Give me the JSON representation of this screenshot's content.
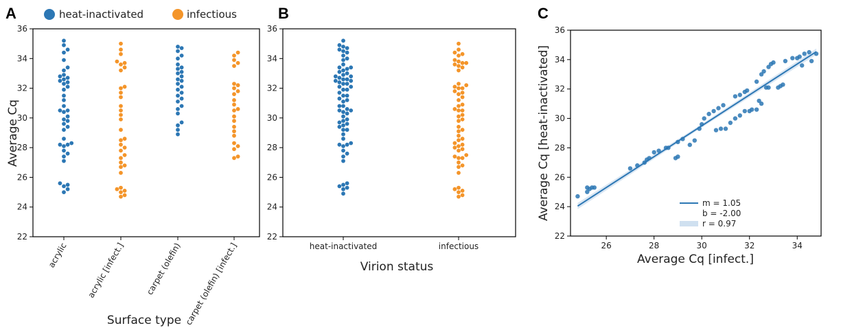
{
  "colors": {
    "blue": "#2c77b4",
    "orange": "#f4952a",
    "fit": "#2c77b4",
    "band": "#cfe0f0"
  },
  "chart_data": [
    {
      "panel": "A",
      "type": "scatter",
      "xlabel": "Surface type",
      "ylabel": "Average Cq",
      "ylim": [
        22,
        36
      ],
      "yticks": [
        22,
        24,
        26,
        28,
        30,
        32,
        34,
        36
      ],
      "legend": [
        {
          "label": "heat-inactivated",
          "color": "#2c77b4"
        },
        {
          "label": "infectious",
          "color": "#f4952a"
        }
      ],
      "legend_placement": "top",
      "categories": [
        "acrylic",
        "acrylic [infect.]",
        "carpet (olefin)",
        "carpet (olefin) [infect.]"
      ],
      "series": [
        {
          "color": "#2c77b4",
          "values": [
            25.0,
            25.2,
            25.4,
            25.5,
            25.6,
            27.1,
            27.4,
            27.6,
            27.8,
            28.1,
            28.2,
            28.2,
            28.3,
            28.6,
            29.2,
            29.4,
            29.6,
            29.8,
            29.9,
            30.1,
            30.4,
            30.5,
            30.5,
            30.8,
            31.2,
            31.5,
            31.9,
            32.1,
            32.3,
            32.4,
            32.5,
            32.6,
            32.7,
            32.8,
            32.9,
            33.2,
            33.4,
            33.9,
            34.4,
            34.6,
            34.9,
            35.2
          ]
        },
        {
          "color": "#f4952a",
          "values": [
            24.7,
            24.8,
            25.0,
            25.1,
            25.2,
            25.3,
            26.3,
            26.7,
            26.8,
            27.0,
            27.3,
            27.5,
            27.8,
            28.0,
            28.2,
            28.5,
            28.6,
            29.2,
            29.9,
            30.2,
            30.5,
            30.8,
            31.4,
            31.7,
            32.0,
            32.1,
            33.2,
            33.4,
            33.6,
            33.7,
            33.8,
            34.3,
            34.6,
            35.0
          ]
        },
        {
          "color": "#2c77b4",
          "values": [
            28.9,
            29.2,
            29.5,
            29.7,
            30.3,
            30.6,
            30.8,
            31.1,
            31.3,
            31.5,
            31.7,
            31.9,
            32.1,
            32.3,
            32.5,
            32.6,
            32.8,
            33.0,
            33.1,
            33.3,
            33.4,
            33.6,
            34.0,
            34.2,
            34.5,
            34.7,
            34.8
          ]
        },
        {
          "color": "#f4952a",
          "values": [
            27.3,
            27.4,
            27.9,
            28.1,
            28.3,
            28.8,
            29.1,
            29.4,
            29.8,
            30.1,
            30.5,
            30.6,
            30.9,
            31.2,
            31.6,
            31.8,
            32.0,
            32.2,
            32.3,
            33.5,
            33.7,
            33.9,
            34.2,
            34.4
          ]
        }
      ]
    },
    {
      "panel": "B",
      "type": "scatter",
      "xlabel": "Virion status",
      "ylabel": "",
      "ylim": [
        22,
        36
      ],
      "yticks": [
        22,
        24,
        26,
        28,
        30,
        32,
        34,
        36
      ],
      "categories": [
        "heat-inactivated",
        "infectious"
      ],
      "series": [
        {
          "color": "#2c77b4",
          "values": [
            24.9,
            25.2,
            25.3,
            25.4,
            25.5,
            25.6,
            27.1,
            27.4,
            27.6,
            27.8,
            28.1,
            28.2,
            28.2,
            28.3,
            28.6,
            28.9,
            29.2,
            29.2,
            29.4,
            29.5,
            29.6,
            29.7,
            29.8,
            29.9,
            30.1,
            30.3,
            30.4,
            30.5,
            30.5,
            30.6,
            30.8,
            30.8,
            31.1,
            31.2,
            31.3,
            31.5,
            31.5,
            31.7,
            31.9,
            31.9,
            32.1,
            32.1,
            32.3,
            32.3,
            32.4,
            32.5,
            32.5,
            32.6,
            32.6,
            32.7,
            32.8,
            32.8,
            32.9,
            33.0,
            33.1,
            33.2,
            33.3,
            33.4,
            33.4,
            33.6,
            33.9,
            34.0,
            34.2,
            34.4,
            34.5,
            34.6,
            34.7,
            34.8,
            34.9,
            35.2
          ]
        },
        {
          "color": "#f4952a",
          "values": [
            24.7,
            24.8,
            25.0,
            25.1,
            25.2,
            25.3,
            26.3,
            26.7,
            26.8,
            27.0,
            27.3,
            27.3,
            27.4,
            27.5,
            27.8,
            27.9,
            28.0,
            28.1,
            28.2,
            28.3,
            28.5,
            28.6,
            28.8,
            29.1,
            29.2,
            29.4,
            29.8,
            29.9,
            30.1,
            30.2,
            30.5,
            30.5,
            30.6,
            30.8,
            30.9,
            31.2,
            31.4,
            31.6,
            31.7,
            31.8,
            32.0,
            32.0,
            32.1,
            32.2,
            32.3,
            33.2,
            33.4,
            33.5,
            33.6,
            33.7,
            33.7,
            33.8,
            33.9,
            34.2,
            34.3,
            34.4,
            34.6,
            35.0
          ]
        }
      ]
    },
    {
      "panel": "C",
      "type": "scatter",
      "xlabel": "Average Cq [infect.]",
      "ylabel": "Average Cq [heat-inactivated]",
      "xlim": [
        24.5,
        35.0
      ],
      "ylim": [
        22,
        36
      ],
      "xticks": [
        26,
        28,
        30,
        32,
        34
      ],
      "yticks": [
        22,
        24,
        26,
        28,
        30,
        32,
        34,
        36
      ],
      "fit": {
        "m": 1.05,
        "b": -2.0,
        "x_range": [
          24.8,
          34.8
        ]
      },
      "legend": [
        "m = 1.05",
        "b = -2.00",
        "r = 0.97"
      ],
      "legend_placement": "lower-right",
      "points": [
        [
          24.8,
          24.7
        ],
        [
          25.2,
          25.3
        ],
        [
          25.3,
          25.2
        ],
        [
          25.4,
          25.3
        ],
        [
          25.5,
          25.3
        ],
        [
          25.2,
          25.0
        ],
        [
          27.0,
          26.6
        ],
        [
          27.3,
          26.8
        ],
        [
          27.6,
          27.0
        ],
        [
          27.8,
          27.3
        ],
        [
          27.7,
          27.2
        ],
        [
          28.0,
          27.7
        ],
        [
          28.2,
          27.8
        ],
        [
          28.5,
          28.0
        ],
        [
          28.6,
          28.0
        ],
        [
          28.9,
          27.3
        ],
        [
          29.0,
          27.4
        ],
        [
          29.0,
          28.4
        ],
        [
          29.2,
          28.6
        ],
        [
          29.5,
          28.2
        ],
        [
          29.7,
          28.5
        ],
        [
          29.9,
          29.3
        ],
        [
          30.0,
          29.6
        ],
        [
          30.1,
          30.0
        ],
        [
          30.3,
          30.3
        ],
        [
          30.5,
          30.5
        ],
        [
          30.6,
          29.2
        ],
        [
          30.7,
          30.7
        ],
        [
          30.8,
          29.3
        ],
        [
          30.9,
          30.9
        ],
        [
          31.0,
          29.3
        ],
        [
          31.2,
          29.7
        ],
        [
          31.4,
          31.5
        ],
        [
          31.6,
          31.6
        ],
        [
          31.8,
          31.8
        ],
        [
          31.9,
          31.9
        ],
        [
          31.4,
          30.0
        ],
        [
          31.6,
          30.2
        ],
        [
          31.8,
          30.5
        ],
        [
          32.0,
          30.5
        ],
        [
          32.1,
          30.6
        ],
        [
          32.3,
          30.6
        ],
        [
          32.4,
          31.2
        ],
        [
          32.5,
          31.0
        ],
        [
          32.7,
          32.1
        ],
        [
          32.8,
          32.1
        ],
        [
          32.3,
          32.5
        ],
        [
          32.5,
          33.0
        ],
        [
          32.6,
          33.2
        ],
        [
          32.8,
          33.5
        ],
        [
          32.9,
          33.7
        ],
        [
          33.0,
          33.8
        ],
        [
          33.2,
          32.1
        ],
        [
          33.3,
          32.2
        ],
        [
          33.4,
          32.3
        ],
        [
          33.5,
          33.9
        ],
        [
          33.8,
          34.1
        ],
        [
          34.0,
          34.1
        ],
        [
          34.1,
          34.2
        ],
        [
          34.3,
          34.4
        ],
        [
          34.5,
          34.5
        ],
        [
          34.6,
          33.9
        ],
        [
          34.8,
          34.4
        ],
        [
          34.2,
          33.6
        ]
      ]
    }
  ]
}
